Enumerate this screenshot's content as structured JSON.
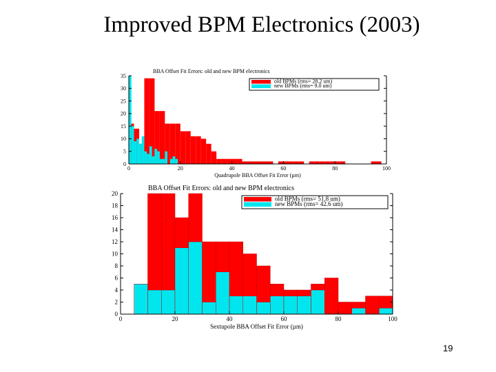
{
  "slide": {
    "title": "Improved BPM Electronics (2003)",
    "page_number": "19"
  },
  "colors": {
    "old": "#ff0000",
    "new": "#00e5ee",
    "axis": "#000000"
  },
  "chart_data": [
    {
      "type": "bar",
      "title": "BBA Offset Fit Errors: old and new BPM electronics",
      "xlabel": "Quadrupole BBA Offset Fit Error (µm)",
      "ylabel": "",
      "xlim": [
        0,
        100
      ],
      "ylim": [
        0,
        35
      ],
      "bin_width": 2,
      "x_ticks": [
        0,
        20,
        40,
        60,
        80,
        100
      ],
      "y_ticks": [
        0,
        5,
        10,
        15,
        20,
        25,
        30,
        35
      ],
      "grid": false,
      "legend_position": "top-right",
      "series": [
        {
          "name": "old BPMs (rms= 28.2 um)",
          "color": "#ff0000",
          "bins": [
            [
              0,
              2,
              16
            ],
            [
              2,
              4,
              14
            ],
            [
              4,
              6,
              8
            ],
            [
              6,
              8,
              34
            ],
            [
              8,
              10,
              34
            ],
            [
              10,
              12,
              21
            ],
            [
              12,
              14,
              21
            ],
            [
              14,
              16,
              16
            ],
            [
              16,
              18,
              16
            ],
            [
              18,
              20,
              16
            ],
            [
              20,
              22,
              13
            ],
            [
              22,
              24,
              13
            ],
            [
              24,
              26,
              11
            ],
            [
              26,
              28,
              11
            ],
            [
              28,
              30,
              10
            ],
            [
              30,
              32,
              8
            ],
            [
              32,
              34,
              5
            ],
            [
              34,
              36,
              2
            ],
            [
              36,
              38,
              2
            ],
            [
              38,
              40,
              2
            ],
            [
              40,
              42,
              2
            ],
            [
              42,
              44,
              2
            ],
            [
              44,
              46,
              1
            ],
            [
              46,
              48,
              1
            ],
            [
              48,
              50,
              1
            ],
            [
              50,
              52,
              1
            ],
            [
              52,
              54,
              1
            ],
            [
              54,
              56,
              1
            ],
            [
              58,
              60,
              1
            ],
            [
              60,
              62,
              1
            ],
            [
              62,
              64,
              1
            ],
            [
              64,
              66,
              1
            ],
            [
              66,
              68,
              1
            ],
            [
              70,
              72,
              1
            ],
            [
              72,
              74,
              1
            ],
            [
              74,
              76,
              1
            ],
            [
              76,
              78,
              1
            ],
            [
              78,
              80,
              1
            ],
            [
              80,
              82,
              1
            ],
            [
              82,
              84,
              1
            ],
            [
              94,
              96,
              1
            ],
            [
              96,
              98,
              1
            ]
          ]
        },
        {
          "name": "new BPMs (rms= 9.0 um)",
          "color": "#00e5ee",
          "bins": [
            [
              0,
              1,
              35
            ],
            [
              1,
              2,
              15
            ],
            [
              2,
              3,
              9
            ],
            [
              3,
              4,
              10
            ],
            [
              4,
              5,
              8
            ],
            [
              5,
              6,
              11
            ],
            [
              6,
              7,
              5
            ],
            [
              7,
              8,
              4
            ],
            [
              8,
              9,
              7
            ],
            [
              9,
              10,
              3
            ],
            [
              10,
              11,
              6
            ],
            [
              11,
              12,
              5
            ],
            [
              12,
              13,
              2
            ],
            [
              13,
              14,
              2
            ],
            [
              14,
              15,
              5
            ],
            [
              16,
              17,
              2
            ],
            [
              17,
              18,
              3
            ],
            [
              18,
              19,
              2
            ]
          ]
        }
      ]
    },
    {
      "type": "bar",
      "title": "BBA Offset Fit Errors: old and new BPM electronics",
      "xlabel": "Sextupole BBA Offset Fit Error (µm)",
      "ylabel": "",
      "xlim": [
        0,
        100
      ],
      "ylim": [
        0,
        20
      ],
      "bin_width": 5,
      "x_ticks": [
        0,
        20,
        40,
        60,
        80,
        100
      ],
      "y_ticks": [
        0,
        2,
        4,
        6,
        8,
        10,
        12,
        14,
        16,
        18,
        20
      ],
      "grid": false,
      "legend_position": "top-right",
      "series": [
        {
          "name": "old BPMs (rms= 51.8 um)",
          "color": "#ff0000",
          "bins": [
            [
              5,
              10,
              5
            ],
            [
              10,
              15,
              20
            ],
            [
              15,
              20,
              20
            ],
            [
              20,
              25,
              16
            ],
            [
              25,
              30,
              20
            ],
            [
              30,
              35,
              12
            ],
            [
              35,
              40,
              12
            ],
            [
              40,
              45,
              12
            ],
            [
              45,
              50,
              10
            ],
            [
              50,
              55,
              8
            ],
            [
              55,
              60,
              5
            ],
            [
              60,
              65,
              4
            ],
            [
              65,
              70,
              4
            ],
            [
              70,
              75,
              5
            ],
            [
              75,
              80,
              6
            ],
            [
              80,
              85,
              2
            ],
            [
              85,
              90,
              2
            ],
            [
              90,
              95,
              3
            ],
            [
              95,
              100,
              3
            ]
          ]
        },
        {
          "name": "new BPMs (rms= 42.6 um)",
          "color": "#00e5ee",
          "bins": [
            [
              5,
              10,
              5
            ],
            [
              10,
              15,
              4
            ],
            [
              15,
              20,
              4
            ],
            [
              20,
              25,
              11
            ],
            [
              25,
              30,
              12
            ],
            [
              30,
              35,
              2
            ],
            [
              35,
              40,
              7
            ],
            [
              40,
              45,
              3
            ],
            [
              45,
              50,
              3
            ],
            [
              50,
              55,
              2
            ],
            [
              55,
              60,
              3
            ],
            [
              60,
              65,
              3
            ],
            [
              65,
              70,
              3
            ],
            [
              70,
              75,
              4
            ],
            [
              85,
              90,
              1
            ],
            [
              95,
              100,
              1
            ]
          ]
        }
      ]
    }
  ]
}
